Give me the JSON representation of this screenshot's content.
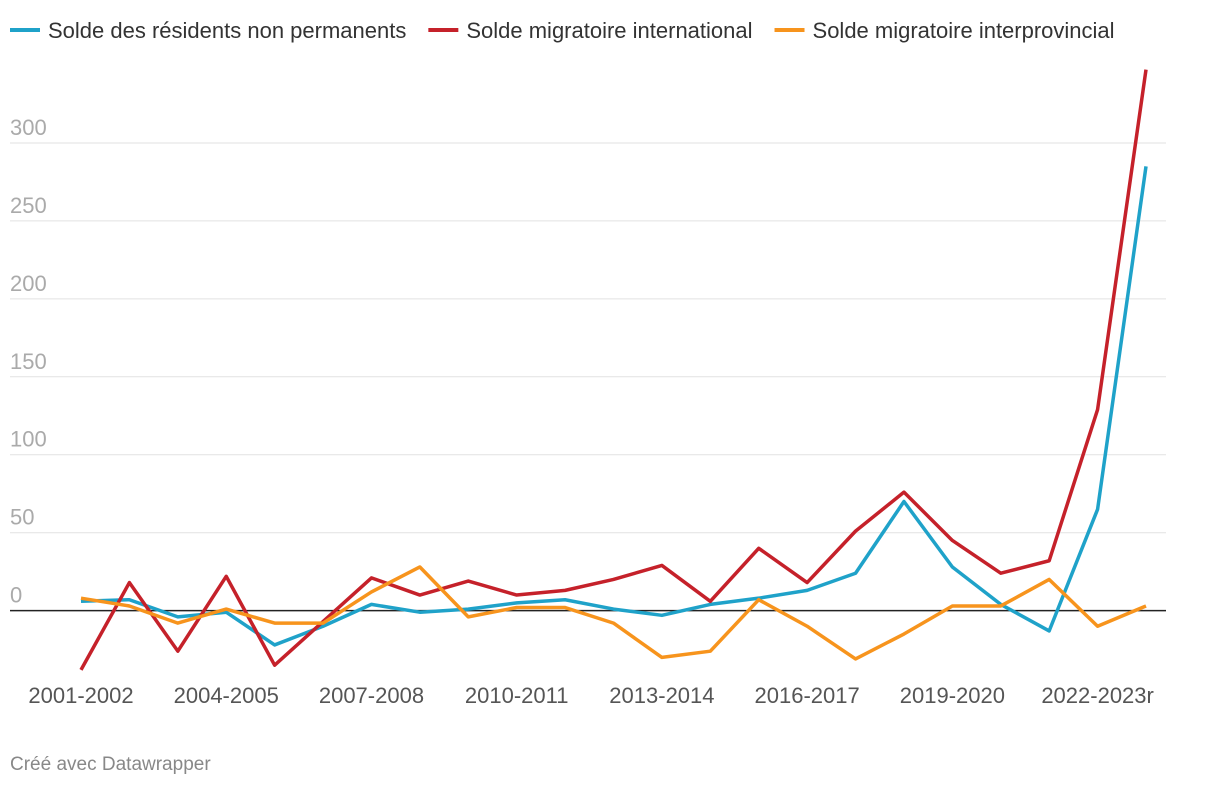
{
  "chart_data": {
    "type": "line",
    "categories": [
      "2001-2002",
      null,
      null,
      "2004-2005",
      null,
      null,
      "2007-2008",
      null,
      null,
      "2010-2011",
      null,
      null,
      "2013-2014",
      null,
      null,
      "2016-2017",
      null,
      null,
      "2019-2020",
      null,
      null,
      "2022-2023r",
      null
    ],
    "series": [
      {
        "name": "Solde des résidents non permanents",
        "color": "#1fa2c9",
        "values": [
          6,
          7,
          -4,
          -1,
          -22,
          -10,
          4,
          -1,
          1,
          5,
          7,
          1,
          -3,
          4,
          8,
          13,
          24,
          70,
          28,
          4,
          -13,
          65,
          285
        ]
      },
      {
        "name": "Solde migratoire international",
        "color": "#c5212a",
        "values": [
          -38,
          18,
          -26,
          22,
          -35,
          -7,
          21,
          10,
          19,
          10,
          13,
          20,
          29,
          6,
          40,
          18,
          51,
          76,
          45,
          24,
          32,
          129,
          347
        ]
      },
      {
        "name": "Solde migratoire interprovincial",
        "color": "#f7941d",
        "values": [
          8,
          3,
          -8,
          1,
          -8,
          -8,
          12,
          28,
          -4,
          2,
          2,
          -8,
          -30,
          -26,
          7,
          -10,
          -31,
          -15,
          3,
          3,
          20,
          -10,
          3
        ]
      }
    ],
    "ylim": [
      -40,
      350
    ],
    "yticks": [
      0,
      50,
      100,
      150,
      200,
      250,
      300
    ],
    "grid": true,
    "legend": "top",
    "footer": "Créé avec Datawrapper"
  }
}
